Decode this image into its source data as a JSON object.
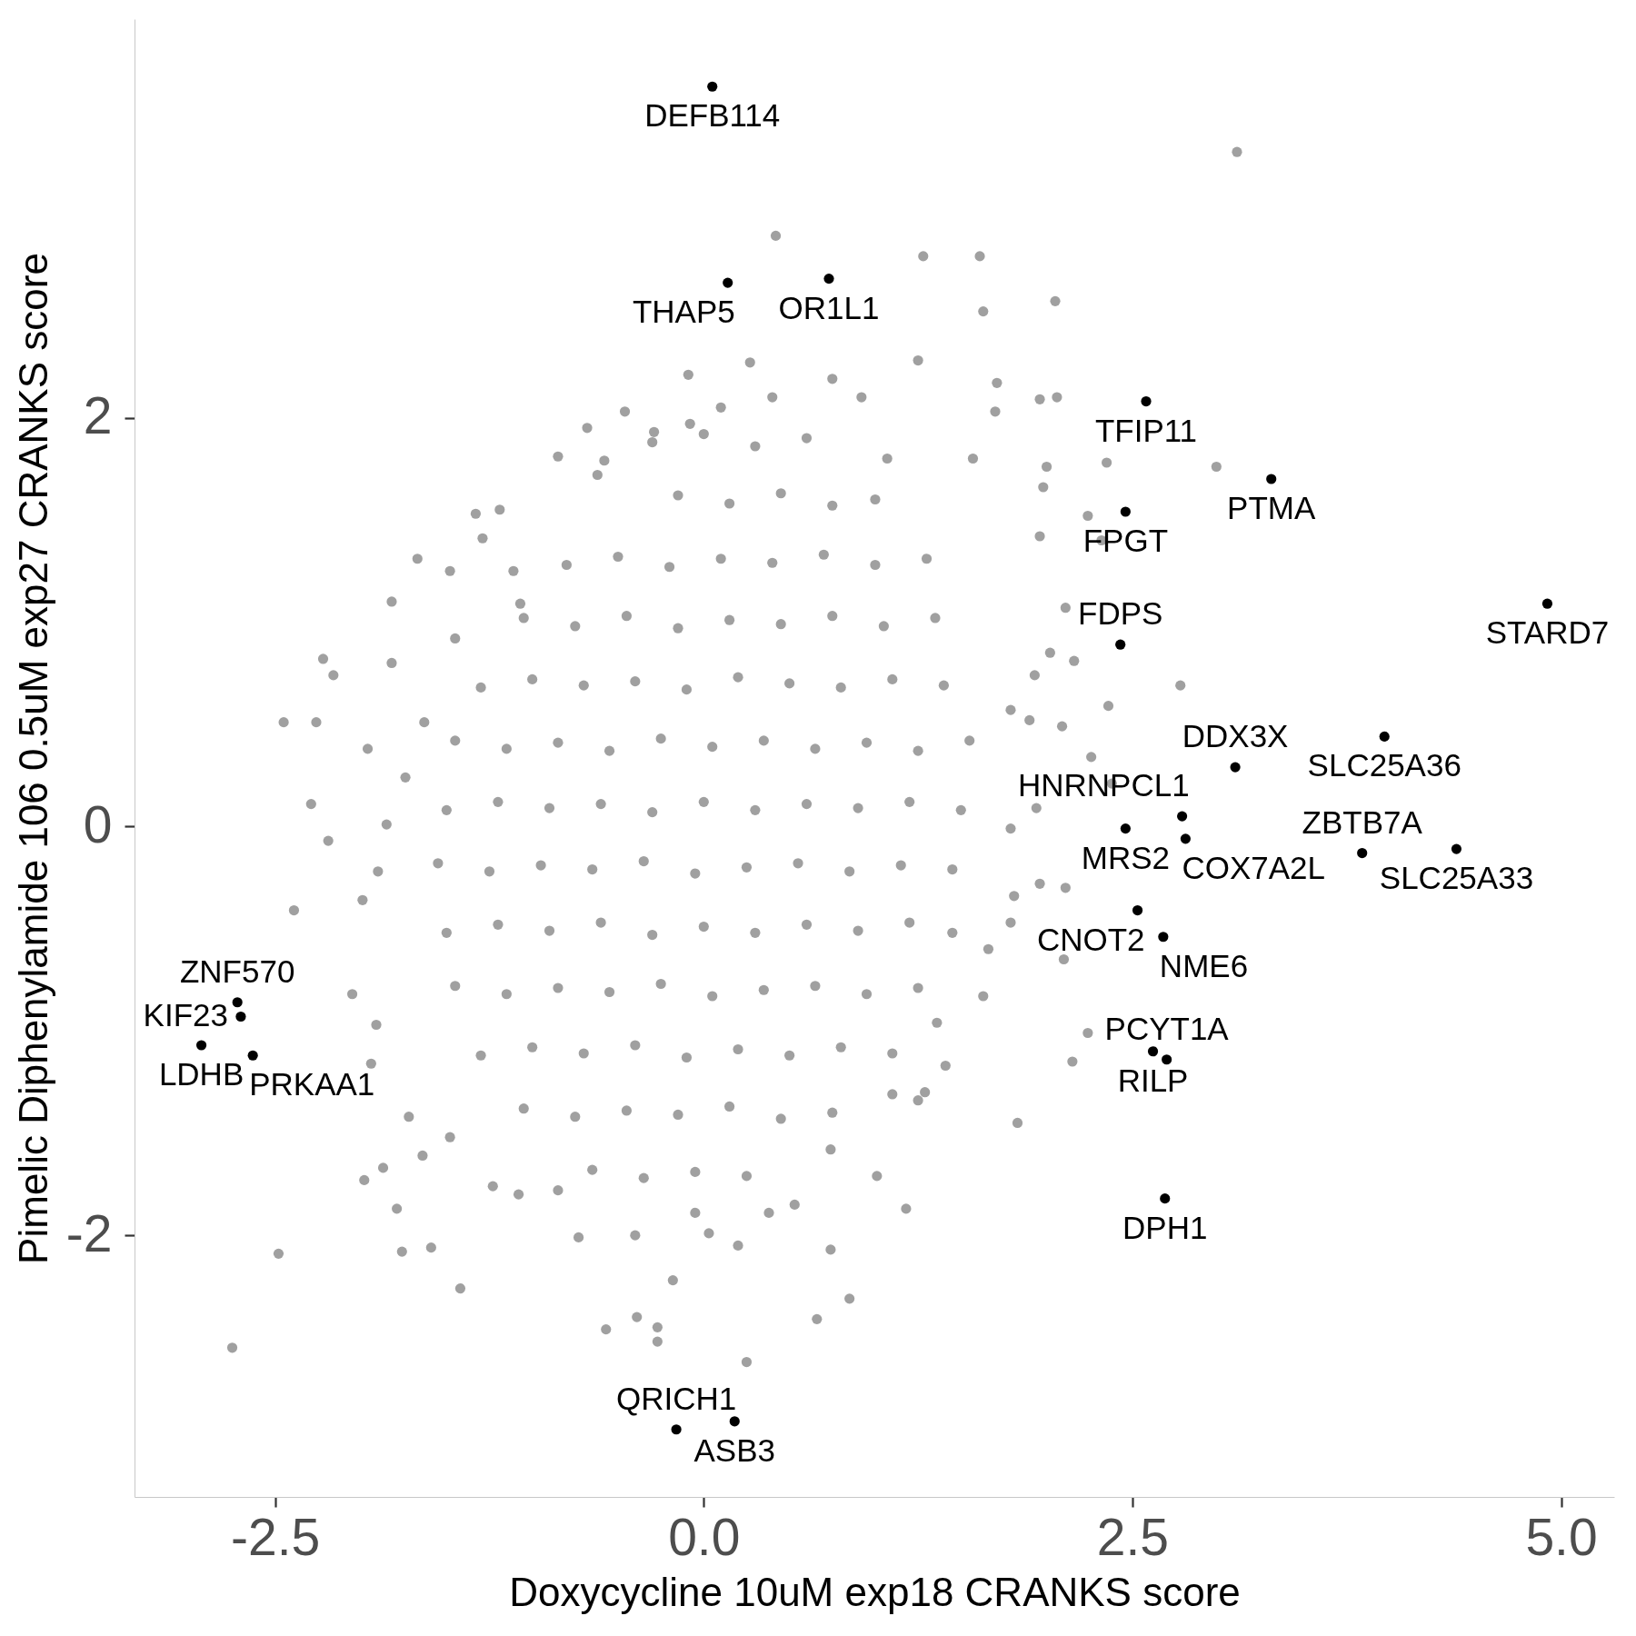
{
  "chart_data": {
    "type": "scatter",
    "xlabel": "Doxycycline 10uM exp18 CRANKS score",
    "ylabel": "Pimelic Diphenylamide 106 0.5uM exp27 CRANKS score",
    "xlim": [
      -3.32,
      5.31
    ],
    "ylim": [
      -3.28,
      3.95
    ],
    "xticks": [
      -2.5,
      {
        "value": 0,
        "label": "0.0"
      },
      2.5,
      {
        "value": 5,
        "label": "5.0"
      }
    ],
    "yticks": [
      -2,
      0,
      2
    ],
    "marker": "circle",
    "series": [
      {
        "color": "#a0a0a0",
        "x": [
          3.11,
          0.42,
          1.28,
          1.61,
          1.63,
          2.05,
          -0.09,
          0.27,
          0.75,
          1.25,
          1.71,
          2.06,
          2.99,
          2.35,
          2.24,
          2.32,
          1.96,
          2.11,
          2.78,
          2.36,
          2.09,
          2.38,
          2.26,
          1.96,
          2.11,
          2.1,
          2.24,
          2.15,
          1.83,
          1.41,
          1.29,
          1.18,
          0.85,
          0.66,
          0.25,
          -0.18,
          -0.27,
          -0.39,
          -0.57,
          -0.27,
          0.2,
          0.74,
          0.38,
          -2.75,
          -2.48,
          -1.42,
          -1.79,
          -1.76,
          -1.59,
          -1.98,
          -1.87,
          -1.72,
          -2.39,
          -2.19,
          -2.29,
          -2.45,
          -2.26,
          -2.22,
          -2.16,
          -1.96,
          -1.82,
          -1.82,
          -1.67,
          -1.48,
          -1.33,
          -1.19,
          -1.29,
          -1.11,
          -0.85,
          -0.68,
          -0.62,
          -0.46,
          -0.29,
          -0.08,
          0.1,
          0.4,
          0.92,
          1.07,
          1.7,
          1.96,
          1.57,
          2.0,
          1.98,
          2.16,
          2.02,
          1.93,
          1.79,
          1.9,
          1.94,
          1.79,
          1.81,
          1.79,
          1.66,
          1.63,
          1.36,
          1.25,
          1.1,
          1.01,
          0.74,
          0.53,
          0.03,
          -0.05,
          -0.4,
          -0.73,
          -0.85,
          -1.08,
          -1.23,
          -1.48,
          -1.64,
          -1.94,
          -1.91,
          -2.05,
          -1.99,
          -1.9,
          -1.85,
          -1.74,
          -1.63,
          -1.45,
          -1.07,
          -0.58,
          -0.3,
          0.0,
          0.3,
          0.6,
          -0.15,
          0.15,
          0.45,
          0.75,
          1.0,
          -0.8,
          -0.5,
          -0.2,
          0.1,
          0.4,
          0.7,
          1.0,
          1.3,
          -1.05,
          -0.75,
          -0.45,
          -0.15,
          0.15,
          0.45,
          0.75,
          1.05,
          1.35,
          -1.3,
          -1.0,
          -0.7,
          -0.4,
          -0.1,
          0.2,
          0.5,
          0.8,
          1.1,
          1.4,
          -1.45,
          -1.15,
          -0.85,
          -0.55,
          -0.25,
          0.05,
          0.35,
          0.65,
          0.95,
          1.25,
          1.55,
          -1.5,
          -1.2,
          -0.9,
          -0.6,
          -0.3,
          0.0,
          0.3,
          0.6,
          0.9,
          1.2,
          1.5,
          -1.55,
          -1.25,
          -0.95,
          -0.65,
          -0.35,
          -0.05,
          0.25,
          0.55,
          0.85,
          1.15,
          1.45,
          -1.5,
          -1.2,
          -0.9,
          -0.6,
          -0.3,
          0.0,
          0.3,
          0.6,
          0.9,
          1.2,
          1.45,
          -1.45,
          -1.15,
          -0.85,
          -0.55,
          -0.25,
          0.05,
          0.35,
          0.65,
          0.95,
          1.25,
          -1.3,
          -1.0,
          -0.7,
          -0.4,
          -0.1,
          0.2,
          0.5,
          0.8,
          1.1,
          -1.05,
          -0.75,
          -0.45,
          -0.15,
          0.15,
          0.45,
          0.75,
          -0.65,
          -0.35,
          -0.05,
          0.25
        ],
        "values": [
          3.3,
          2.89,
          2.79,
          2.79,
          2.52,
          2.57,
          2.21,
          2.27,
          2.19,
          2.28,
          2.17,
          2.1,
          1.76,
          1.78,
          1.52,
          1.4,
          1.42,
          1.07,
          0.69,
          0.59,
          0.49,
          0.21,
          0.34,
          -0.28,
          -0.3,
          -0.65,
          -1.01,
          -1.15,
          -1.45,
          -1.17,
          -1.3,
          -1.87,
          -2.31,
          -2.41,
          -2.62,
          -2.22,
          -2.45,
          -2.4,
          -2.46,
          -2.52,
          -2.05,
          -2.07,
          -1.89,
          -2.55,
          -2.09,
          -2.26,
          -1.87,
          -2.08,
          -2.06,
          -1.73,
          -1.67,
          -1.42,
          -0.41,
          -0.07,
          0.11,
          0.51,
          0.51,
          0.82,
          0.74,
          0.38,
          0.8,
          1.1,
          1.31,
          1.25,
          1.53,
          1.55,
          1.41,
          1.25,
          1.81,
          1.95,
          1.72,
          2.03,
          1.93,
          1.97,
          2.05,
          2.1,
          2.1,
          1.8,
          2.03,
          2.09,
          1.8,
          1.76,
          1.66,
          0.81,
          0.85,
          0.74,
          0.57,
          0.52,
          0.09,
          -0.01,
          -0.34,
          -0.47,
          -0.6,
          -0.83,
          -0.96,
          -1.34,
          -1.31,
          -1.71,
          -1.58,
          -1.85,
          -1.99,
          -1.89,
          -2.0,
          -2.01,
          -1.78,
          -1.8,
          -1.76,
          -1.52,
          -1.61,
          -1.16,
          -0.97,
          -0.82,
          -0.36,
          -0.22,
          0.01,
          0.24,
          0.51,
          0.92,
          1.09,
          1.79,
          1.88,
          1.92,
          1.86,
          1.9,
          1.62,
          1.58,
          1.63,
          1.57,
          1.6,
          1.28,
          1.32,
          1.27,
          1.31,
          1.29,
          1.33,
          1.28,
          1.31,
          1.02,
          0.98,
          1.03,
          0.97,
          1.01,
          0.99,
          1.03,
          0.98,
          1.02,
          0.68,
          0.72,
          0.69,
          0.71,
          0.67,
          0.73,
          0.7,
          0.68,
          0.72,
          0.69,
          0.42,
          0.38,
          0.41,
          0.37,
          0.43,
          0.39,
          0.42,
          0.38,
          0.41,
          0.37,
          0.42,
          0.08,
          0.12,
          0.09,
          0.11,
          0.07,
          0.12,
          0.08,
          0.11,
          0.09,
          0.12,
          0.08,
          -0.18,
          -0.22,
          -0.19,
          -0.21,
          -0.17,
          -0.23,
          -0.2,
          -0.18,
          -0.22,
          -0.19,
          -0.21,
          -0.52,
          -0.48,
          -0.51,
          -0.47,
          -0.53,
          -0.49,
          -0.52,
          -0.48,
          -0.51,
          -0.47,
          -0.52,
          -0.78,
          -0.82,
          -0.79,
          -0.81,
          -0.77,
          -0.83,
          -0.8,
          -0.78,
          -0.82,
          -0.79,
          -1.12,
          -1.08,
          -1.11,
          -1.07,
          -1.13,
          -1.09,
          -1.12,
          -1.08,
          -1.11,
          -1.38,
          -1.42,
          -1.39,
          -1.41,
          -1.37,
          -1.43,
          -1.4,
          -1.68,
          -1.72,
          -1.69,
          -1.71
        ]
      },
      {
        "color": "#000000",
        "x": [
          0.05,
          0.73,
          0.14,
          2.58,
          3.31,
          2.46,
          4.92,
          2.43,
          3.97,
          3.1,
          2.79,
          2.46,
          2.81,
          4.39,
          3.84,
          2.53,
          2.68,
          2.62,
          2.7,
          2.69,
          -2.72,
          -2.7,
          -2.93,
          -2.63,
          0.18,
          -0.16
        ],
        "values": [
          3.62,
          2.68,
          2.66,
          2.08,
          1.7,
          1.54,
          1.09,
          0.89,
          0.44,
          0.29,
          0.05,
          -0.01,
          -0.06,
          -0.11,
          -0.13,
          -0.41,
          -0.54,
          -1.1,
          -1.14,
          -1.82,
          -0.86,
          -0.93,
          -1.07,
          -1.12,
          -2.91,
          -2.95
        ]
      }
    ],
    "annotations": [
      {
        "text": "DEFB114",
        "x": 0.05,
        "y": 3.62
      },
      {
        "text": "OR1L1",
        "x": 0.73,
        "y": 2.68
      },
      {
        "text": "THAP5",
        "x": 0.14,
        "y": 2.66
      },
      {
        "text": "TFIP11",
        "x": 2.58,
        "y": 2.08
      },
      {
        "text": "PTMA",
        "x": 3.31,
        "y": 1.7
      },
      {
        "text": "FPGT",
        "x": 2.46,
        "y": 1.54
      },
      {
        "text": "STARD7",
        "x": 4.92,
        "y": 1.09
      },
      {
        "text": "FDPS",
        "x": 2.43,
        "y": 0.89
      },
      {
        "text": "SLC25A36",
        "x": 3.97,
        "y": 0.44
      },
      {
        "text": "DDX3X",
        "x": 3.1,
        "y": 0.29
      },
      {
        "text": "HNRNPCL1",
        "x": 2.79,
        "y": 0.05
      },
      {
        "text": "MRS2",
        "x": 2.46,
        "y": -0.01
      },
      {
        "text": "COX7A2L",
        "x": 2.81,
        "y": -0.06
      },
      {
        "text": "SLC25A33",
        "x": 4.39,
        "y": -0.11
      },
      {
        "text": "ZBTB7A",
        "x": 3.84,
        "y": -0.13
      },
      {
        "text": "CNOT2",
        "x": 2.53,
        "y": -0.41
      },
      {
        "text": "NME6",
        "x": 2.68,
        "y": -0.54
      },
      {
        "text": "RILP",
        "x": 2.62,
        "y": -1.1
      },
      {
        "text": "PCYT1A",
        "x": 2.7,
        "y": -1.14
      },
      {
        "text": "DPH1",
        "x": 2.69,
        "y": -1.82
      },
      {
        "text": "ZNF570",
        "x": -2.72,
        "y": -0.86
      },
      {
        "text": "KIF23",
        "x": -2.7,
        "y": -0.93
      },
      {
        "text": "LDHB",
        "x": -2.93,
        "y": -1.07
      },
      {
        "text": "PRKAA1",
        "x": -2.63,
        "y": -1.12
      },
      {
        "text": "ASB3",
        "x": 0.18,
        "y": -2.91
      },
      {
        "text": "QRICH1",
        "x": -0.16,
        "y": -2.95
      }
    ]
  }
}
